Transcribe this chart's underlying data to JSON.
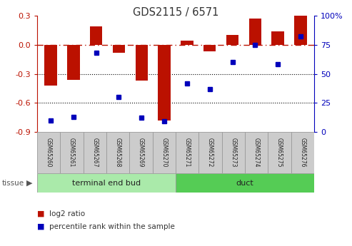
{
  "title": "GDS2115 / 6571",
  "samples": [
    "GSM65260",
    "GSM65261",
    "GSM65267",
    "GSM65268",
    "GSM65269",
    "GSM65270",
    "GSM65271",
    "GSM65272",
    "GSM65273",
    "GSM65274",
    "GSM65275",
    "GSM65276"
  ],
  "log2_ratio": [
    -0.42,
    -0.36,
    0.19,
    -0.085,
    -0.37,
    -0.78,
    0.04,
    -0.07,
    0.1,
    0.27,
    0.14,
    0.3
  ],
  "percentile_rank": [
    10,
    13,
    68,
    30,
    12,
    9,
    42,
    37,
    60,
    75,
    58,
    82
  ],
  "tissue_groups": [
    {
      "label": "terminal end bud",
      "start": 0,
      "end": 6,
      "color": "#AAEAAA"
    },
    {
      "label": "duct",
      "start": 6,
      "end": 12,
      "color": "#55CC55"
    }
  ],
  "ylim_left": [
    -0.9,
    0.3
  ],
  "ylim_right": [
    0,
    100
  ],
  "yticks_left": [
    -0.9,
    -0.6,
    -0.3,
    0.0,
    0.3
  ],
  "yticks_right": [
    0,
    25,
    50,
    75,
    100
  ],
  "bar_color": "#BB1100",
  "dot_color": "#0000BB",
  "grid_lines": [
    -0.3,
    -0.6
  ],
  "legend_items": [
    "log2 ratio",
    "percentile rank within the sample"
  ],
  "legend_colors": [
    "#BB1100",
    "#0000BB"
  ],
  "tissue_label": "tissue",
  "sample_box_color": "#CCCCCC",
  "background_color": "#FFFFFF"
}
